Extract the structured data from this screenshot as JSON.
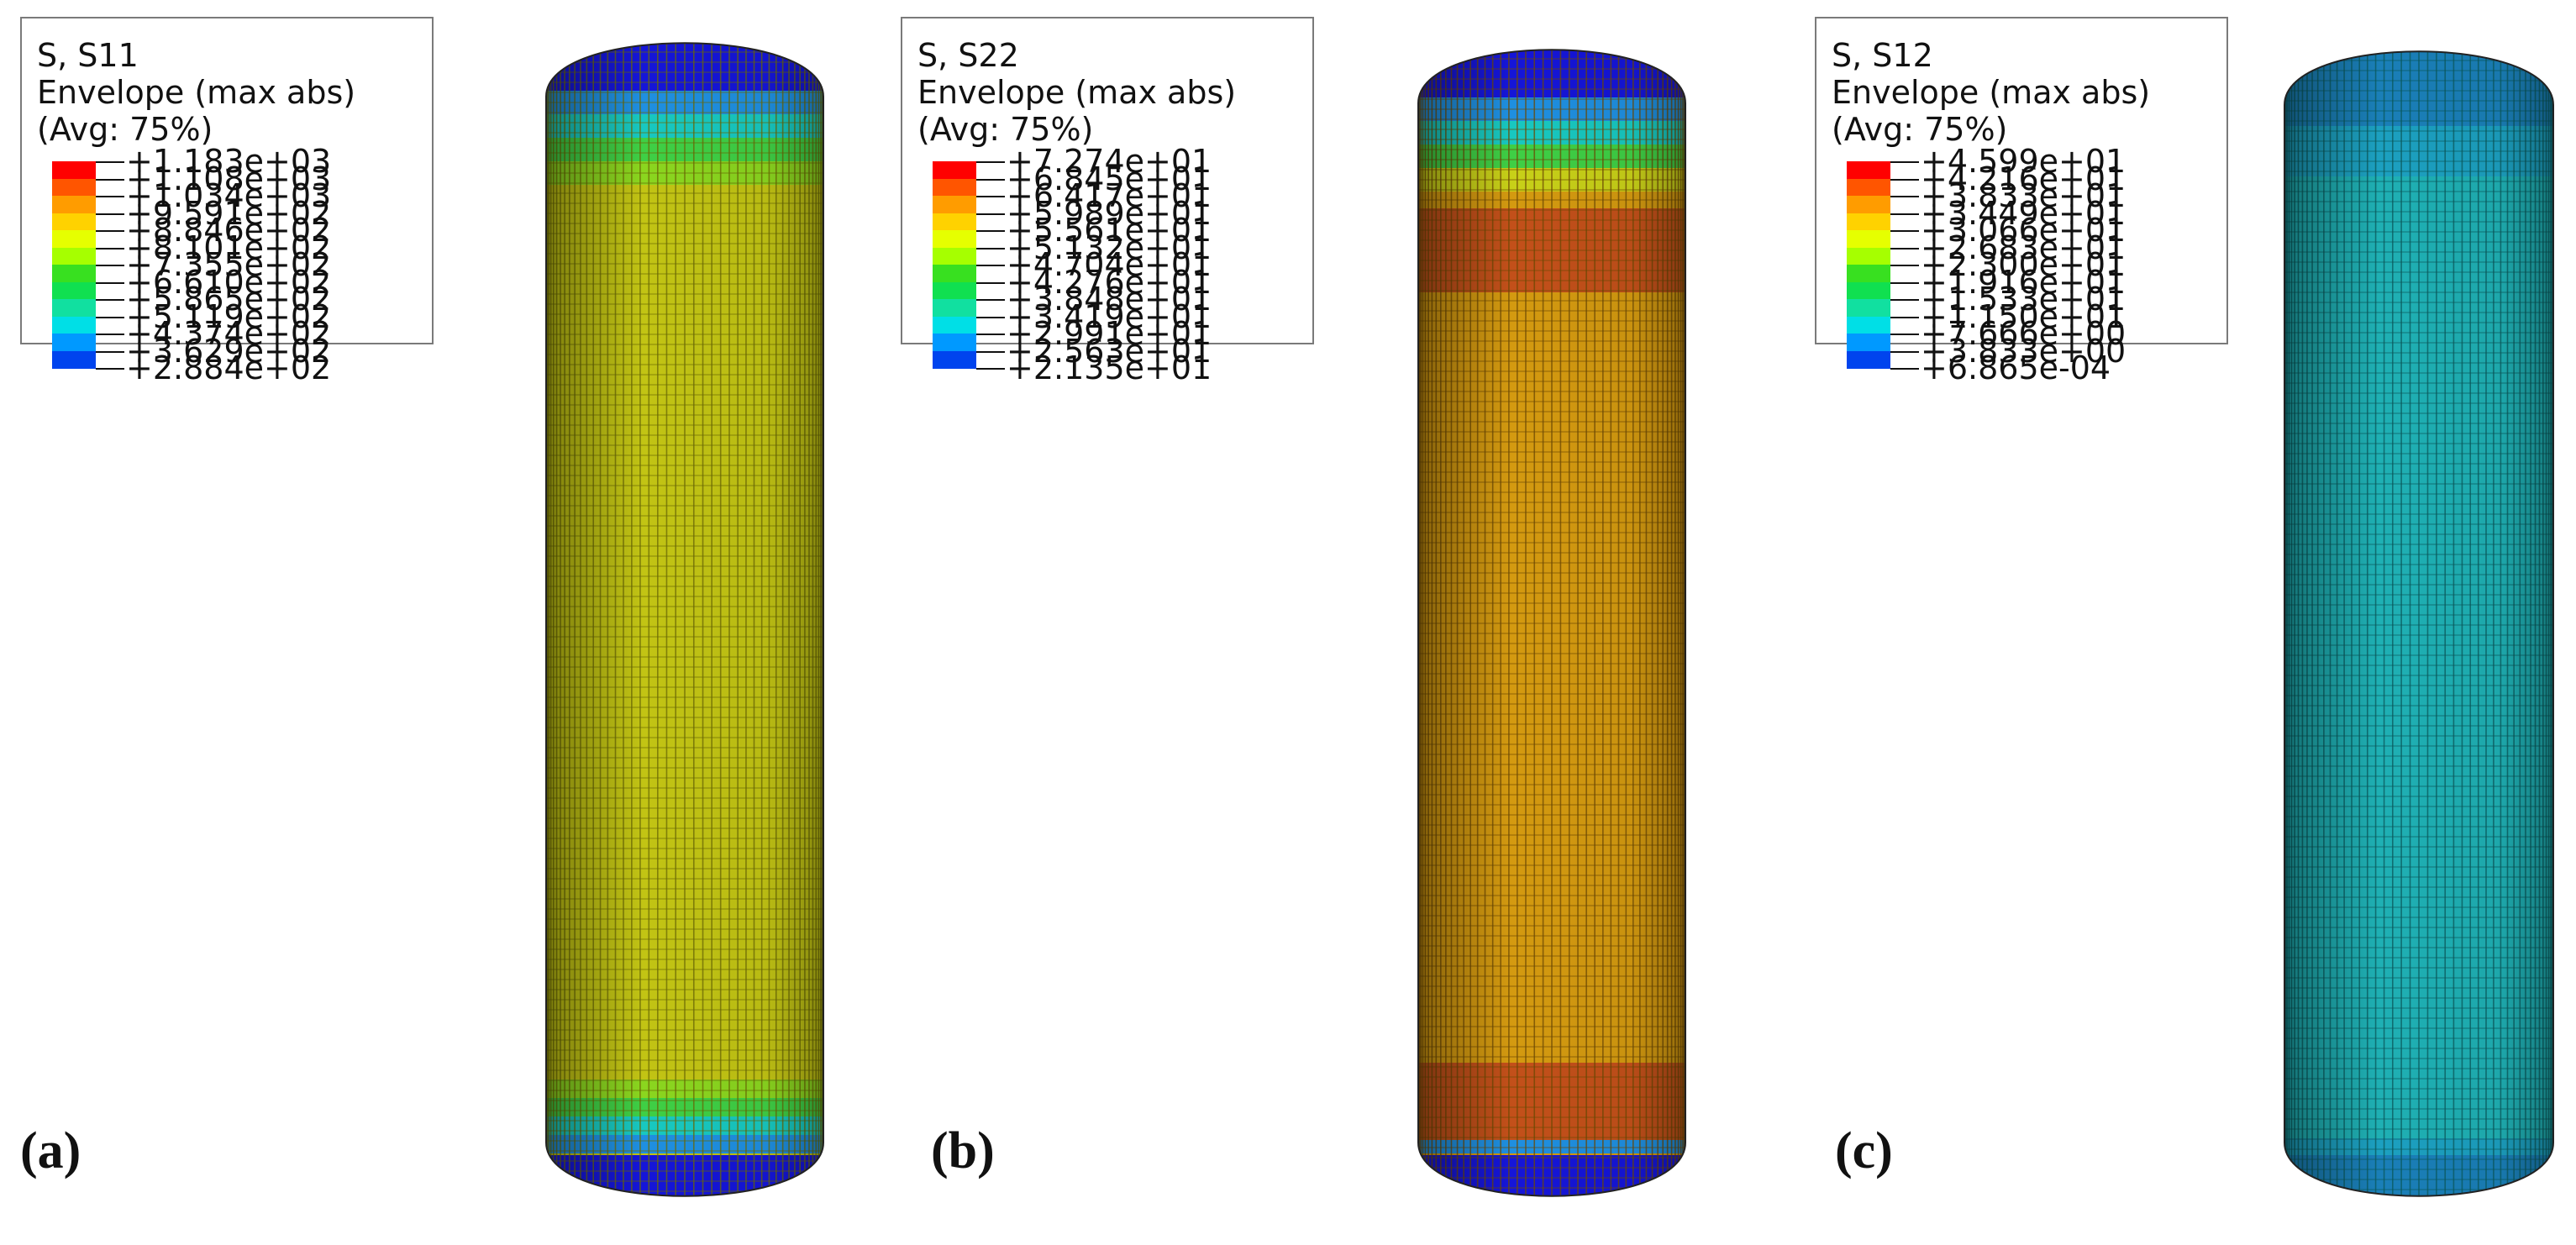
{
  "panels": [
    {
      "id": "a",
      "label": "(a)",
      "legend": {
        "title": [
          "S, S11",
          "Envelope (max abs)",
          "(Avg: 75%)"
        ],
        "values": [
          "+1.183e+03",
          "+1.108e+03",
          "+1.034e+03",
          "+9.591e+02",
          "+8.846e+02",
          "+8.101e+02",
          "+7.355e+02",
          "+6.610e+02",
          "+5.865e+02",
          "+5.119e+02",
          "+4.374e+02",
          "+3.629e+02",
          "+2.884e+02"
        ]
      },
      "model_colors": {
        "body": "#c2c414",
        "mesh": "#6b6a05",
        "end_bands": [
          "#1515d8",
          "#1f8fe0",
          "#18c8c0",
          "#3fcf45",
          "#8bd61f"
        ]
      }
    },
    {
      "id": "b",
      "label": "(b)",
      "legend": {
        "title": [
          "S, S22",
          "Envelope (max abs)",
          "(Avg: 75%)"
        ],
        "values": [
          "+7.274e+01",
          "+6.845e+01",
          "+6.417e+01",
          "+5.989e+01",
          "+5.561e+01",
          "+5.132e+01",
          "+4.704e+01",
          "+4.276e+01",
          "+3.848e+01",
          "+3.419e+01",
          "+2.991e+01",
          "+2.563e+01",
          "+2.135e+01"
        ]
      },
      "model_colors": {
        "body": "#d49a10",
        "mesh": "#6e4a04",
        "end_bands": [
          "#1515d8",
          "#1f8fe0",
          "#18c8c0",
          "#3fcf45",
          "#c8d018"
        ],
        "hot_band": "#c3501a"
      }
    },
    {
      "id": "c",
      "label": "(c)",
      "legend": {
        "title": [
          "S, S12",
          "Envelope (max abs)",
          "(Avg: 75%)"
        ],
        "values": [
          "+4.599e+01",
          "+4.216e+01",
          "+3.833e+01",
          "+3.449e+01",
          "+3.066e+01",
          "+2.683e+01",
          "+2.300e+01",
          "+1.916e+01",
          "+1.533e+01",
          "+1.150e+01",
          "+7.666e+00",
          "+3.833e+00",
          "+6.865e-04"
        ]
      },
      "model_colors": {
        "body": "#1fb0b4",
        "mesh": "#0b5a5c",
        "end_bands": [
          "#1a7fb8",
          "#1ca0c0"
        ]
      }
    }
  ],
  "contour_colors": [
    "#ff0000",
    "#ff5500",
    "#ff9c00",
    "#ffd200",
    "#e6ff00",
    "#a6ff00",
    "#38e020",
    "#10e050",
    "#11e0a0",
    "#00dfe6",
    "#0099ff",
    "#0044ee",
    "#0000ff"
  ]
}
